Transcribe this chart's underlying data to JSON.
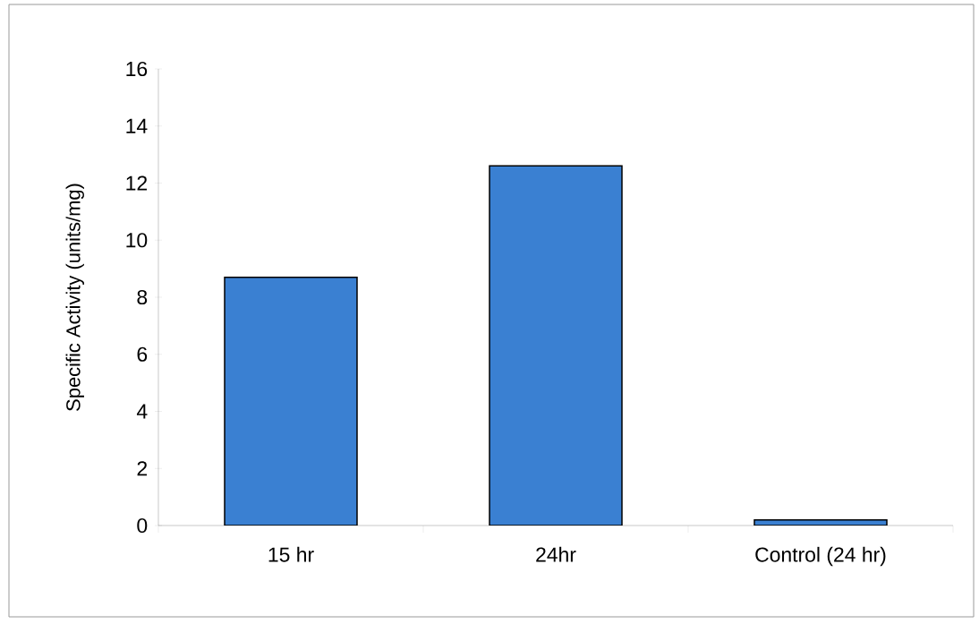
{
  "chart_data": {
    "type": "bar",
    "ylabel": "Specific Activity (units/mg)",
    "categories": [
      "15 hr",
      "24hr",
      "Control (24 hr)"
    ],
    "values": [
      8.7,
      12.6,
      0.2
    ],
    "color": "#3a80d2",
    "ylim": [
      0,
      16
    ],
    "yticks": [
      0,
      2,
      4,
      6,
      8,
      10,
      12,
      14,
      16
    ]
  }
}
